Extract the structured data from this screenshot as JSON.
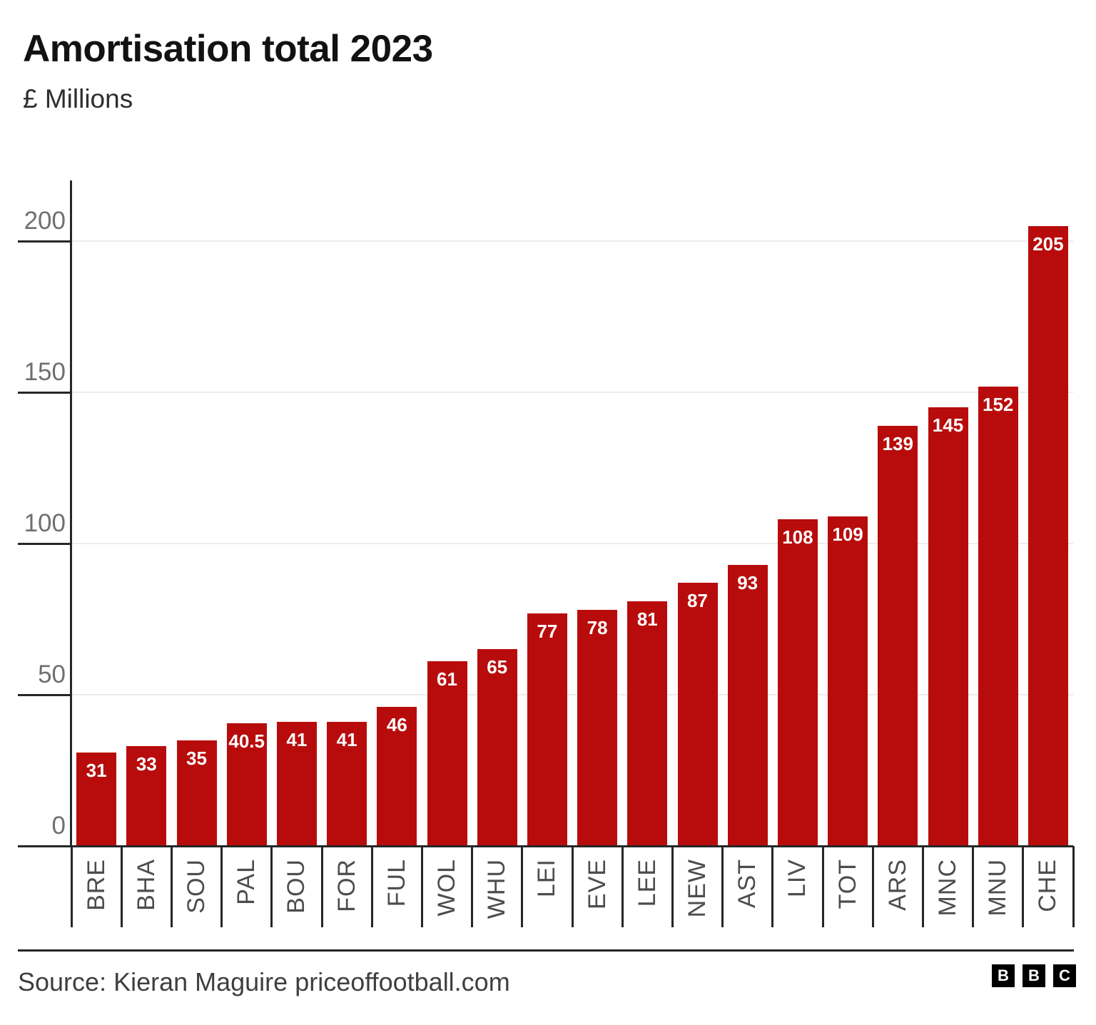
{
  "header": {
    "title": "Amortisation total 2023",
    "subtitle": "£ Millions"
  },
  "chart_data": {
    "type": "bar",
    "title": "Amortisation total 2023",
    "subtitle": "£ Millions",
    "categories": [
      "BRE",
      "BHA",
      "SOU",
      "PAL",
      "BOU",
      "FOR",
      "FUL",
      "WOL",
      "WHU",
      "LEI",
      "EVE",
      "LEE",
      "NEW",
      "AST",
      "LIV",
      "TOT",
      "ARS",
      "MNC",
      "MNU",
      "CHE"
    ],
    "values": [
      31,
      33,
      35,
      40.5,
      41,
      41,
      46,
      61,
      65,
      77,
      78,
      81,
      87,
      93,
      108,
      109,
      139,
      145,
      152,
      205
    ],
    "xlabel": "",
    "ylabel": "£ Millions",
    "ylim": [
      0,
      220
    ],
    "yticks": [
      0,
      50,
      100,
      150,
      200
    ],
    "grid": true,
    "legend": "none",
    "bar_color": "#b80c0c",
    "value_label_color": "#ffffff"
  },
  "footer": {
    "source": "Source: Kieran Maguire priceoffootball.com",
    "logo_letters": [
      "B",
      "B",
      "C"
    ]
  },
  "colors": {
    "bar": "#b80c0c",
    "axis": "#262626",
    "gridline": "#ececec",
    "ylabel": "#6f6f73",
    "xlabel": "#4d4d50",
    "title": "#121212"
  }
}
